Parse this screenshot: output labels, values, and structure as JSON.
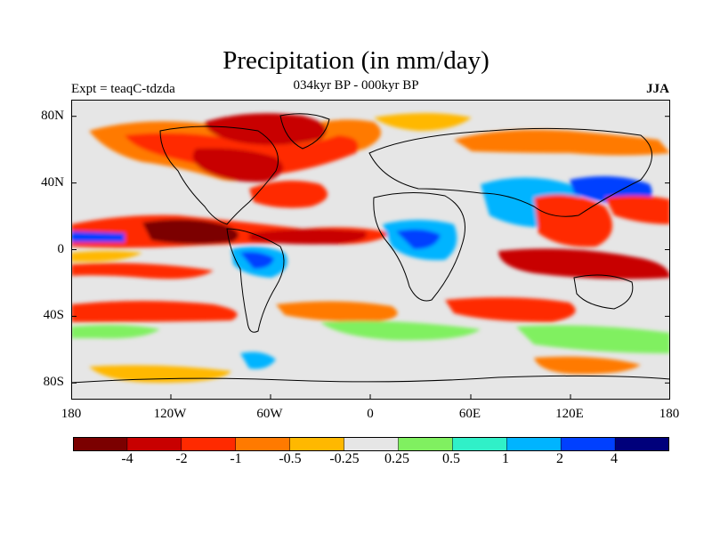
{
  "title": "Precipitation (in mm/day)",
  "subtitle_center": "034kyr BP - 000kyr BP",
  "subtitle_left": "Expt = teaqC-tdzda",
  "subtitle_right": "JJA",
  "y_ticks": [
    "80N",
    "40N",
    "0",
    "40S",
    "80S"
  ],
  "x_ticks": [
    "180",
    "120W",
    "60W",
    "0",
    "60E",
    "120E",
    "180"
  ],
  "colorbar": {
    "colors": [
      "#7b0000",
      "#c80000",
      "#ff2a00",
      "#ff7a00",
      "#ffb800",
      "#e6e6e6",
      "#80f060",
      "#30f0c8",
      "#00b4ff",
      "#0040ff",
      "#00007b"
    ],
    "labels": [
      "-4",
      "-2",
      "-1",
      "-0.5",
      "-0.25",
      "0.25",
      "0.5",
      "1",
      "2",
      "4"
    ]
  },
  "map_background": "#e6e6e6"
}
